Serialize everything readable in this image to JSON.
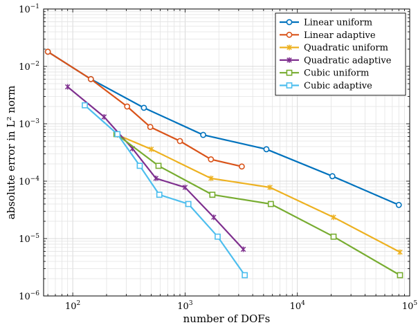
{
  "chart_data": {
    "type": "line",
    "title": "",
    "xlabel": "number of DOFs",
    "ylabel": "absolute error in L² norm",
    "x_scale": "log",
    "y_scale": "log",
    "xlim": [
      55,
      100000
    ],
    "ylim": [
      1e-06,
      0.1
    ],
    "grid": true,
    "legend_position": "top-right",
    "x_ticks": [
      {
        "value": 100,
        "base": "10",
        "exp": "2"
      },
      {
        "value": 1000,
        "base": "10",
        "exp": "3"
      },
      {
        "value": 10000,
        "base": "10",
        "exp": "4"
      },
      {
        "value": 100000,
        "base": "10",
        "exp": "5"
      }
    ],
    "y_ticks": [
      {
        "value": 1e-06,
        "base": "10",
        "exp": "−6"
      },
      {
        "value": 1e-05,
        "base": "10",
        "exp": "−5"
      },
      {
        "value": 0.0001,
        "base": "10",
        "exp": "−4"
      },
      {
        "value": 0.001,
        "base": "10",
        "exp": "−3"
      },
      {
        "value": 0.01,
        "base": "10",
        "exp": "−2"
      },
      {
        "value": 0.1,
        "base": "10",
        "exp": "−1"
      }
    ],
    "series": [
      {
        "name": "Linear uniform",
        "color": "#0072BD",
        "marker": "circle",
        "x": [
          60,
          145,
          430,
          1450,
          5300,
          20500,
          80000
        ],
        "y": [
          0.018,
          0.006,
          0.0019,
          0.00064,
          0.00036,
          0.000122,
          3.85e-05
        ]
      },
      {
        "name": "Linear adaptive",
        "color": "#D95319",
        "marker": "circle",
        "x": [
          60,
          145,
          305,
          490,
          900,
          1700,
          3200
        ],
        "y": [
          0.018,
          0.006,
          0.002,
          0.00088,
          0.0005,
          0.00024,
          0.00018
        ]
      },
      {
        "name": "Quadratic uniform",
        "color": "#EDB120",
        "marker": "star",
        "x": [
          250,
          500,
          1700,
          5700,
          21000,
          82000
        ],
        "y": [
          0.00064,
          0.00036,
          0.000112,
          7.8e-05,
          2.35e-05,
          5.8e-06
        ]
      },
      {
        "name": "Quadratic adaptive",
        "color": "#7E2F8E",
        "marker": "star",
        "x": [
          90,
          190,
          340,
          550,
          1000,
          1800,
          3300
        ],
        "y": [
          0.0044,
          0.00132,
          0.00037,
          0.000112,
          7.8e-05,
          2.35e-05,
          6.5e-06
        ]
      },
      {
        "name": "Cubic uniform",
        "color": "#77AC30",
        "marker": "square",
        "x": [
          245,
          580,
          1750,
          5800,
          21000,
          82000
        ],
        "y": [
          0.00066,
          0.000185,
          5.8e-05,
          4e-05,
          1.08e-05,
          2.3e-06
        ]
      },
      {
        "name": "Cubic adaptive",
        "color": "#4DBEEE",
        "marker": "square",
        "x": [
          128,
          250,
          395,
          590,
          1070,
          1950,
          3400
        ],
        "y": [
          0.0021,
          0.00066,
          0.000185,
          5.8e-05,
          4e-05,
          1.08e-05,
          2.3e-06
        ]
      }
    ]
  }
}
